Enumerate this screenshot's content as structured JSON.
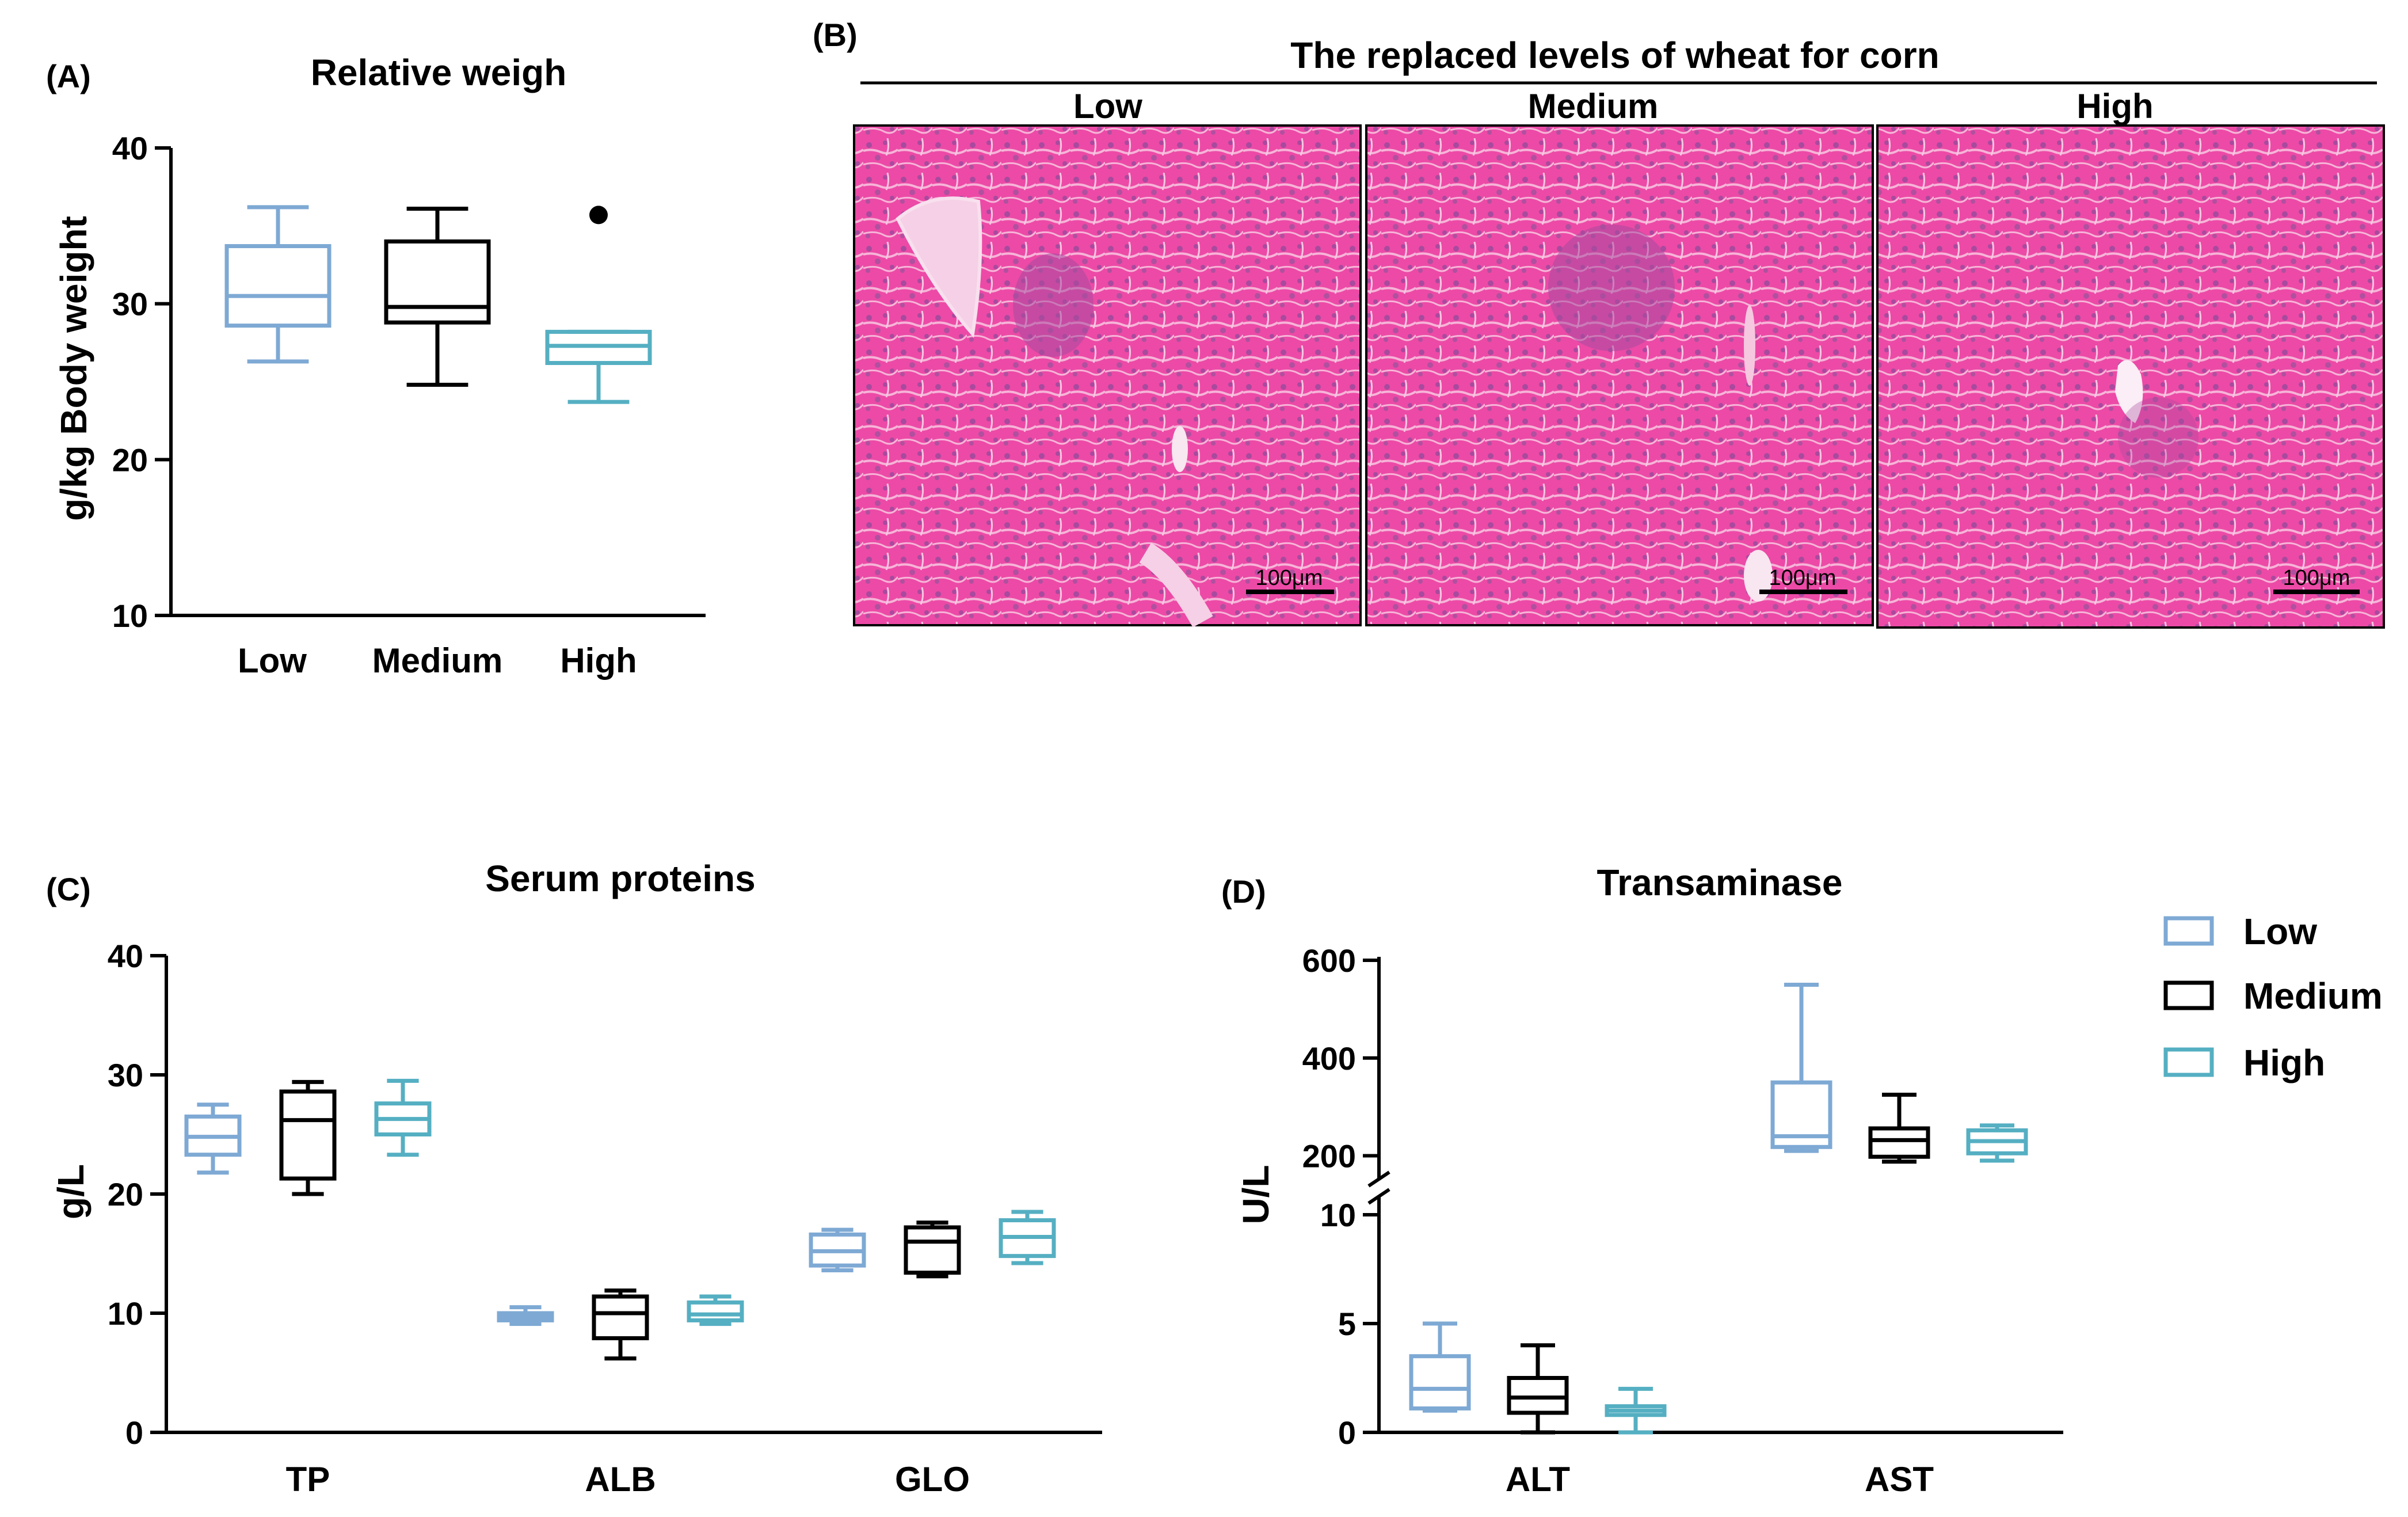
{
  "colors": {
    "low": "#7ea9d4",
    "medium": "#000000",
    "high": "#55afc2",
    "tissue": "#ec4aa6"
  },
  "panel_a": {
    "letter": "(A)",
    "title": "Relative weigh",
    "ylabel": "g/kg Body weight",
    "yticks": [
      "10",
      "20",
      "30",
      "40"
    ],
    "categories": [
      "Low",
      "Medium",
      "High"
    ]
  },
  "panel_b": {
    "letter": "(B)",
    "header": "The replaced levels of wheat for corn",
    "labels": [
      "Low",
      "Medium",
      "High"
    ],
    "scale_bar": "100μm"
  },
  "panel_c": {
    "letter": "(C)",
    "title": "Serum proteins",
    "ylabel": "g/L",
    "yticks": [
      "0",
      "10",
      "20",
      "30",
      "40"
    ],
    "categories": [
      "TP",
      "ALB",
      "GLO"
    ]
  },
  "panel_d": {
    "letter": "(D)",
    "title": "Transaminase",
    "ylabel": "U/L",
    "yticks_low": [
      "0",
      "5",
      "10"
    ],
    "yticks_high": [
      "200",
      "400",
      "600"
    ],
    "categories": [
      "ALT",
      "AST"
    ]
  },
  "legend": {
    "items": [
      {
        "label": "Low",
        "color": "#7ea9d4"
      },
      {
        "label": "Medium",
        "color": "#000000"
      },
      {
        "label": "High",
        "color": "#55afc2"
      }
    ]
  },
  "chart_data": [
    {
      "type": "box",
      "panel": "A",
      "title": "Relative weigh",
      "ylabel": "g/kg Body weight",
      "ylim": [
        10,
        40
      ],
      "categories": [
        "Low",
        "Medium",
        "High"
      ],
      "boxes": [
        {
          "group": "Low",
          "min": 26.3,
          "q1": 28.6,
          "median": 30.5,
          "q3": 33.7,
          "max": 36.2
        },
        {
          "group": "Medium",
          "min": 24.8,
          "q1": 28.8,
          "median": 29.8,
          "q3": 34.0,
          "max": 36.1
        },
        {
          "group": "High",
          "min": 23.7,
          "q1": 26.2,
          "median": 27.3,
          "q3": 28.2,
          "max": 28.2,
          "outliers": [
            35.7
          ]
        }
      ]
    },
    {
      "type": "box",
      "panel": "C",
      "title": "Serum proteins",
      "ylabel": "g/L",
      "ylim": [
        0,
        40
      ],
      "categories": [
        "TP",
        "ALB",
        "GLO"
      ],
      "series": [
        {
          "name": "Low",
          "boxes": [
            {
              "min": 21.8,
              "q1": 23.3,
              "median": 24.8,
              "q3": 26.5,
              "max": 27.5
            },
            {
              "min": 9.1,
              "q1": 9.4,
              "median": 9.7,
              "q3": 10.0,
              "max": 10.5
            },
            {
              "min": 13.6,
              "q1": 14.0,
              "median": 15.2,
              "q3": 16.6,
              "max": 17.0
            }
          ]
        },
        {
          "name": "Medium",
          "boxes": [
            {
              "min": 20.0,
              "q1": 21.3,
              "median": 26.2,
              "q3": 28.6,
              "max": 29.4
            },
            {
              "min": 6.2,
              "q1": 7.9,
              "median": 10.0,
              "q3": 11.4,
              "max": 11.9
            },
            {
              "min": 13.1,
              "q1": 13.4,
              "median": 16.0,
              "q3": 17.2,
              "max": 17.6
            }
          ]
        },
        {
          "name": "High",
          "boxes": [
            {
              "min": 23.3,
              "q1": 25.0,
              "median": 26.3,
              "q3": 27.6,
              "max": 29.5
            },
            {
              "min": 9.1,
              "q1": 9.4,
              "median": 9.9,
              "q3": 10.9,
              "max": 11.4
            },
            {
              "min": 14.2,
              "q1": 14.8,
              "median": 16.4,
              "q3": 17.8,
              "max": 18.5
            }
          ]
        }
      ]
    },
    {
      "type": "box",
      "panel": "D",
      "title": "Transaminase",
      "ylabel": "U/L",
      "axis_break": {
        "lower": [
          0,
          10
        ],
        "upper": [
          150,
          600
        ]
      },
      "categories": [
        "ALT",
        "AST"
      ],
      "series": [
        {
          "name": "Low",
          "boxes": [
            {
              "min": 1.0,
              "q1": 1.1,
              "median": 2.0,
              "q3": 3.5,
              "max": 5.0
            },
            {
              "min": 210,
              "q1": 218,
              "median": 240,
              "q3": 350,
              "max": 550
            }
          ]
        },
        {
          "name": "Medium",
          "boxes": [
            {
              "min": 0.0,
              "q1": 0.9,
              "median": 1.6,
              "q3": 2.5,
              "max": 4.0
            },
            {
              "min": 188,
              "q1": 198,
              "median": 232,
              "q3": 256,
              "max": 325
            }
          ]
        },
        {
          "name": "High",
          "boxes": [
            {
              "min": 0.0,
              "q1": 0.8,
              "median": 1.0,
              "q3": 1.2,
              "max": 2.0
            },
            {
              "min": 190,
              "q1": 205,
              "median": 230,
              "q3": 252,
              "max": 262
            }
          ]
        }
      ]
    }
  ]
}
